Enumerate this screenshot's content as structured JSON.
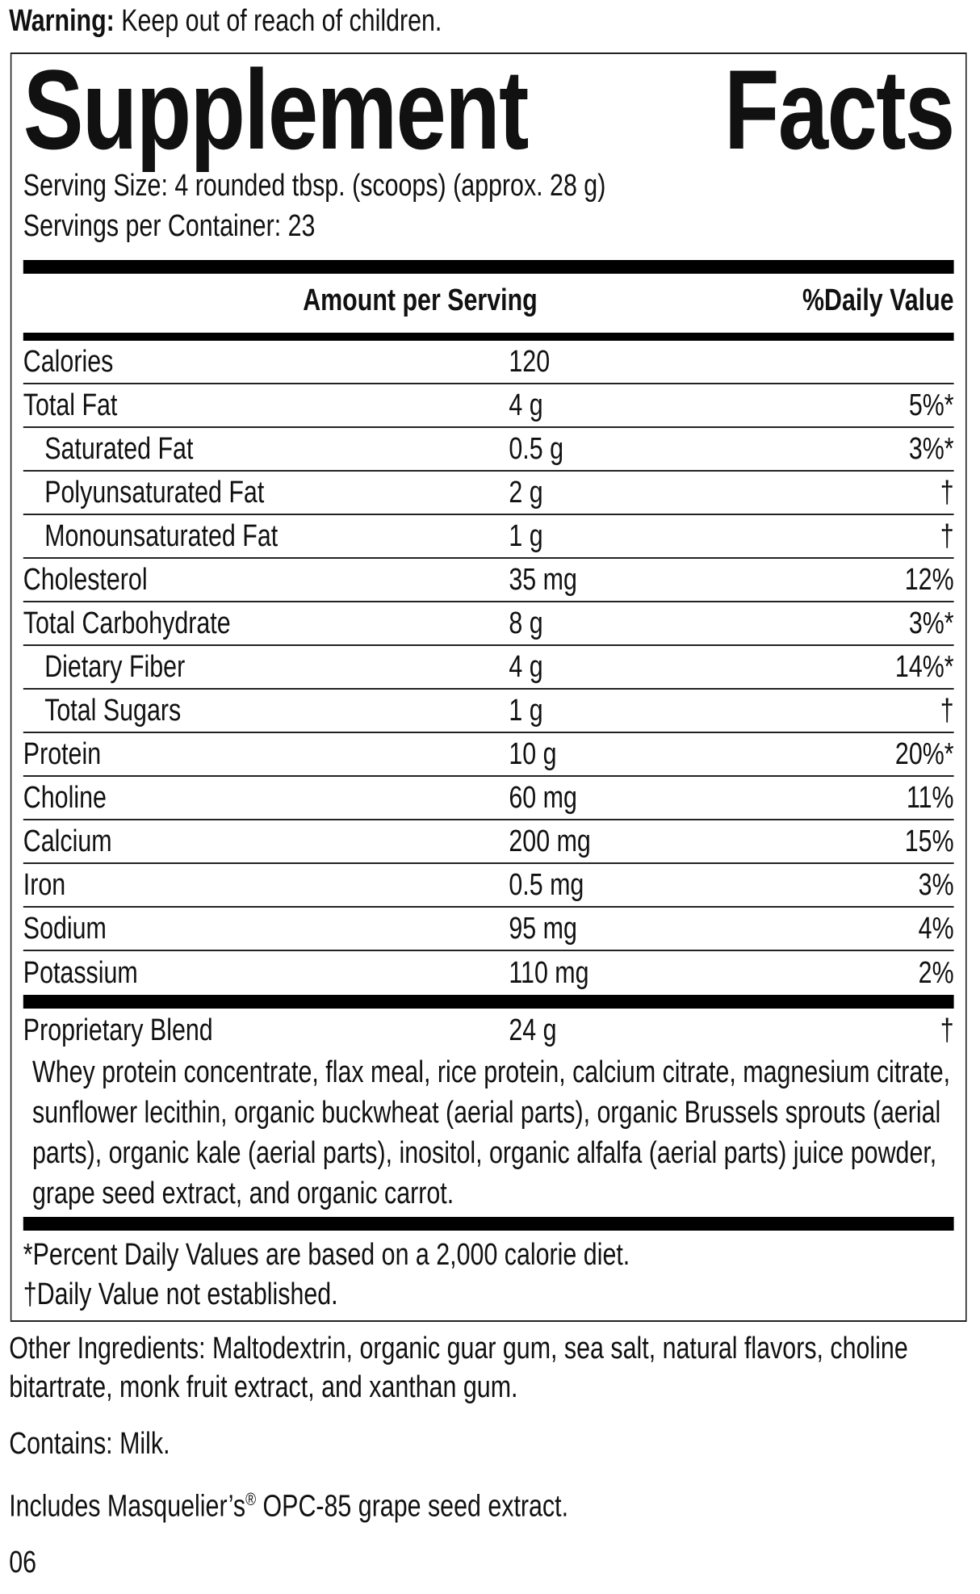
{
  "warning": {
    "label": "Warning:",
    "text": "Keep out of reach of children."
  },
  "title": "Supplement Facts",
  "serving_size": "Serving Size: 4 rounded tbsp. (scoops) (approx. 28 g)",
  "servings_per_container": "Servings per Container: 23",
  "header": {
    "amount": "Amount per Serving",
    "daily_value": "%Daily Value"
  },
  "rows": [
    {
      "name": "Calories",
      "amount": "120"
    },
    {
      "name": "Total Fat",
      "amount": "4 g",
      "daily_value": "5%*",
      "sub": [
        {
          "name": "Saturated Fat",
          "amount": "0.5 g",
          "daily_value": "3%*"
        },
        {
          "name": "Polyunsaturated Fat",
          "amount": "2 g",
          "daily_value": "†"
        },
        {
          "name": "Monounsaturated Fat",
          "amount": "1 g",
          "daily_value": "†"
        }
      ]
    },
    {
      "name": "Cholesterol",
      "amount": "35 mg",
      "daily_value": "12%"
    },
    {
      "name": "Total Carbohydrate",
      "amount": "8 g",
      "daily_value": "3%*",
      "sub": [
        {
          "name": "Dietary Fiber",
          "amount": "4 g",
          "daily_value": "14%*"
        },
        {
          "name": "Total Sugars",
          "amount": "1 g",
          "daily_value": "†"
        }
      ]
    },
    {
      "name": "Protein",
      "amount": "10 g",
      "daily_value": "20%*"
    },
    {
      "name": "Choline",
      "amount": "60 mg",
      "daily_value": "11%"
    },
    {
      "name": "Calcium",
      "amount": "200 mg",
      "daily_value": "15%"
    },
    {
      "name": "Iron",
      "amount": "0.5 mg",
      "daily_value": "3%"
    },
    {
      "name": "Sodium",
      "amount": "95 mg",
      "daily_value": "4%"
    },
    {
      "name": "Potassium",
      "amount": "110 mg",
      "daily_value": "2%"
    }
  ],
  "blend": {
    "name": "Proprietary Blend",
    "amount": "24 g",
    "daily_value": "†",
    "ingredients": "Whey protein concentrate, flax meal, rice protein, calcium citrate, magnesium citrate, sunflower lecithin, organic buckwheat (aerial parts), organic Brussels sprouts (aerial parts), organic kale (aerial parts), inositol, organic alfalfa (aerial parts) juice powder, grape seed extract, and organic carrot."
  },
  "footnotes": [
    "*Percent Daily Values are based on a 2,000 calorie diet.",
    "†Daily Value not established."
  ],
  "other_ingredients": "Other Ingredients: Maltodextrin, organic guar gum, sea salt, natural flavors, choline bitartrate, monk fruit extract, and xanthan gum.",
  "contains": "Contains: Milk.",
  "includes": {
    "before": "Includes Masquelier’s",
    "mark": "®",
    "after": " OPC-85 grape seed extract."
  },
  "code": "06"
}
